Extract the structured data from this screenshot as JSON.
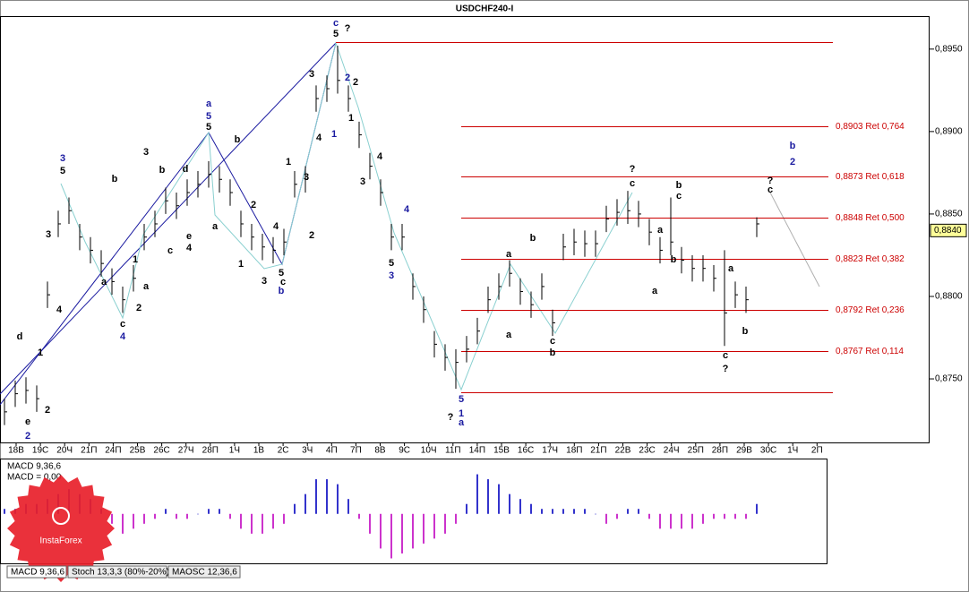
{
  "chart_data": [
    {
      "type": "ohlc",
      "title": "USDCHF240-I",
      "xtick_labels": [
        "18В",
        "19С",
        "20Ч",
        "21П",
        "24П",
        "25В",
        "26С",
        "27Ч",
        "28П",
        "1Ч",
        "1В",
        "2С",
        "3Ч",
        "4П",
        "7П",
        "8В",
        "9С",
        "10Ч",
        "11П",
        "14П",
        "15В",
        "16С",
        "17Ч",
        "18П",
        "21П",
        "22В",
        "23С",
        "24Ч",
        "25П",
        "28П",
        "29В",
        "30С",
        "1Ч",
        "2П"
      ],
      "high": [
        0.8738,
        0.8749,
        0.8751,
        0.8746,
        0.8809,
        0.8852,
        0.886,
        0.8844,
        0.8836,
        0.8828,
        0.8817,
        0.8806,
        0.8819,
        0.8844,
        0.8852,
        0.8866,
        0.8863,
        0.8871,
        0.8876,
        0.8882,
        0.8879,
        0.8871,
        0.8852,
        0.8844,
        0.8838,
        0.8836,
        0.8841,
        0.8876,
        0.8879,
        0.8928,
        0.8934,
        0.8952,
        0.8928,
        0.8906,
        0.8887,
        0.8871,
        0.8844,
        0.8844,
        0.8814,
        0.88,
        0.8779,
        0.8771,
        0.8768,
        0.8776,
        0.8787,
        0.8806,
        0.8814,
        0.8822,
        0.8811,
        0.8803,
        0.8814,
        0.8792,
        0.8838,
        0.8841,
        0.884,
        0.884,
        0.8855,
        0.8859,
        0.8864,
        0.8858,
        0.8847,
        0.8836,
        0.886,
        0.883,
        0.8825,
        0.8825,
        0.8819,
        0.8828,
        0.8809,
        0.8806,
        0.8848
      ],
      "low": [
        0.8722,
        0.8733,
        0.8735,
        0.873,
        0.8793,
        0.8836,
        0.8844,
        0.8828,
        0.882,
        0.8812,
        0.8801,
        0.879,
        0.8803,
        0.8828,
        0.8836,
        0.885,
        0.8847,
        0.8855,
        0.886,
        0.8866,
        0.8863,
        0.8855,
        0.8836,
        0.8828,
        0.8822,
        0.882,
        0.8825,
        0.886,
        0.8863,
        0.8912,
        0.8918,
        0.8923,
        0.8912,
        0.889,
        0.8871,
        0.8855,
        0.8828,
        0.8828,
        0.8798,
        0.8784,
        0.8763,
        0.8755,
        0.8744,
        0.876,
        0.8771,
        0.879,
        0.8798,
        0.8806,
        0.8795,
        0.8787,
        0.8798,
        0.8776,
        0.8822,
        0.8825,
        0.8824,
        0.8824,
        0.8839,
        0.8843,
        0.8844,
        0.8842,
        0.8831,
        0.882,
        0.8825,
        0.8814,
        0.8809,
        0.8809,
        0.8803,
        0.877,
        0.8793,
        0.879,
        0.8836
      ],
      "close": [
        0.873,
        0.8741,
        0.8743,
        0.8738,
        0.8801,
        0.8844,
        0.8852,
        0.8836,
        0.8828,
        0.882,
        0.8809,
        0.8798,
        0.8811,
        0.8836,
        0.8844,
        0.8858,
        0.8855,
        0.8863,
        0.8868,
        0.8874,
        0.8871,
        0.8863,
        0.8844,
        0.8836,
        0.883,
        0.8828,
        0.8833,
        0.8868,
        0.8871,
        0.892,
        0.8926,
        0.8931,
        0.892,
        0.8898,
        0.8879,
        0.8863,
        0.8836,
        0.8836,
        0.8806,
        0.8792,
        0.8771,
        0.8763,
        0.876,
        0.8768,
        0.8779,
        0.8798,
        0.8806,
        0.8814,
        0.8803,
        0.8795,
        0.8806,
        0.8784,
        0.883,
        0.8833,
        0.8832,
        0.8832,
        0.8847,
        0.8851,
        0.8852,
        0.885,
        0.8839,
        0.8828,
        0.8833,
        0.8822,
        0.8817,
        0.8817,
        0.8811,
        0.879,
        0.8801,
        0.8798,
        0.8844
      ],
      "color": "#000000",
      "ylim": [
        0.8712,
        0.897
      ],
      "yticks": [
        {
          "value": 0.875,
          "label": "0,8750"
        },
        {
          "value": 0.88,
          "label": "0,8800"
        },
        {
          "value": 0.885,
          "label": "0,8850"
        },
        {
          "value": 0.89,
          "label": "0,8900"
        },
        {
          "value": 0.895,
          "label": "0,8950"
        }
      ],
      "last_price": {
        "value": 0.884,
        "label": "0,8840"
      },
      "levels": [
        0.8954,
        {
          "value": 0.8903,
          "label": "0,8903 Ret 0,764"
        },
        {
          "value": 0.8873,
          "label": "0,8873 Ret 0,618"
        },
        {
          "value": 0.8848,
          "label": "0,8848 Ret 0,500"
        },
        {
          "value": 0.8823,
          "label": "0,8823 Ret 0,382"
        },
        {
          "value": 0.8792,
          "label": "0,8792 Ret 0,236"
        },
        {
          "value": 0.8767,
          "label": "0,8767 Ret 0,114"
        },
        0.8742
      ],
      "level_color": "#cc0000",
      "annotations": [
        "c",
        "5",
        "?",
        "a",
        "5",
        "5",
        "b",
        "3",
        "5",
        "3",
        "b",
        "d",
        "b",
        "3",
        "2",
        "2",
        "1",
        "1",
        "4",
        "1",
        "3",
        "4",
        "2",
        "5",
        "c",
        "b",
        "2",
        "1",
        "3",
        "e",
        "4",
        "a",
        "c",
        "3",
        "4",
        "d",
        "1",
        "2",
        "e",
        "2",
        "1",
        "a",
        "a",
        "c",
        "2",
        "4",
        "4",
        "3",
        "4",
        "5",
        "3",
        "5",
        "1",
        "a",
        "?",
        "a",
        "a",
        "b",
        "c",
        "b",
        "?",
        "c",
        "b",
        "c",
        "a",
        "b",
        "a",
        "a",
        "b",
        "c",
        "?",
        "?",
        "c",
        "b",
        "2"
      ]
    },
    {
      "type": "bar",
      "title": "MACD 9,36,6",
      "subtitle": "MACD = 0,00",
      "values": [
        0.0001,
        0.0001,
        0.0002,
        0.0002,
        0.0003,
        0.0004,
        0.0005,
        0.0004,
        0.0003,
        0.0001,
        -0.0002,
        -0.0004,
        -0.0003,
        -0.0002,
        -0.0001,
        0.0001,
        -0.0001,
        -0.0001,
        0,
        0.0001,
        0.0001,
        -0.0001,
        -0.0003,
        -0.0004,
        -0.0004,
        -0.0003,
        -0.0002,
        0.0002,
        0.0004,
        0.0007,
        0.0007,
        0.0006,
        0.0003,
        -0.0001,
        -0.0004,
        -0.0007,
        -0.0009,
        -0.0008,
        -0.0007,
        -0.0006,
        -0.0005,
        -0.0004,
        -0.0002,
        0.0002,
        0.0008,
        0.0007,
        0.0006,
        0.0004,
        0.0003,
        0.0002,
        0.0001,
        0.0001,
        0.0001,
        0.0001,
        0.0001,
        0,
        -0.0002,
        -0.0001,
        0.0001,
        0.0001,
        -0.0001,
        -0.0003,
        -0.0003,
        -0.0003,
        -0.0003,
        -0.0002,
        -0.0001,
        -0.0001,
        -0.0001,
        -0.0001,
        0.0002
      ],
      "ylim": [
        -0.001,
        0.0011
      ],
      "color": "#3333cc",
      "negative_color": "#cc33cc"
    }
  ],
  "tabs": [
    "MACD 9,36,6",
    "Stoch 13,3,3 (80%-20%)",
    "MAOSC 12,36,6"
  ],
  "logo": "InstaForex"
}
